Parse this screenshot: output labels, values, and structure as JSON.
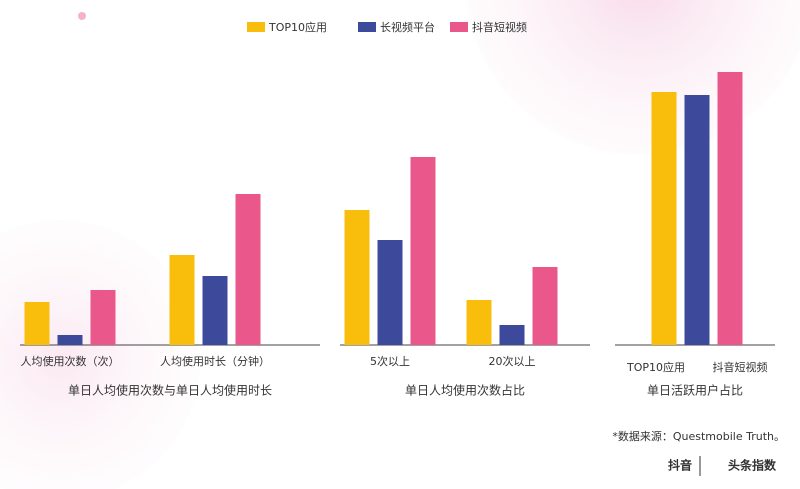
{
  "chart_data": [
    {
      "type": "grouped-bar",
      "title": "单日人均使用次数与单日人均使用时长",
      "categories": [
        "人均使用次数（次）",
        "人均使用时长（分钟）"
      ],
      "series": [
        {
          "name": "TOP10应用",
          "color": "#f9be0c",
          "values": [
            43,
            90
          ]
        },
        {
          "name": "长视频平台",
          "color": "#3d4a9b",
          "values": [
            10,
            69
          ]
        },
        {
          "name": "抖音短视频",
          "color": "#e9578b",
          "values": [
            55,
            151
          ]
        }
      ],
      "ylim": [
        0,
        300
      ]
    },
    {
      "type": "grouped-bar",
      "title": "单日人均使用次数占比",
      "categories": [
        "5次以上",
        "20次以上"
      ],
      "series": [
        {
          "name": "TOP10应用",
          "color": "#f9be0c",
          "values": [
            135,
            45
          ]
        },
        {
          "name": "长视频平台",
          "color": "#3d4a9b",
          "values": [
            105,
            20
          ]
        },
        {
          "name": "抖音短视频",
          "color": "#e9578b",
          "values": [
            188,
            78
          ]
        }
      ],
      "ylim": [
        0,
        300
      ]
    },
    {
      "type": "bar",
      "title": "单日活跃用户占比",
      "categories": [
        "TOP10应用",
        null,
        "抖音短视频"
      ],
      "values": [
        253,
        250,
        273
      ],
      "colors": [
        "#f9be0c",
        "#3d4a9b",
        "#e9578b"
      ],
      "ylim": [
        0,
        300
      ]
    }
  ],
  "source": "*数据来源：Questmobile Truth。",
  "logos": [
    "抖音",
    "头条指数"
  ]
}
